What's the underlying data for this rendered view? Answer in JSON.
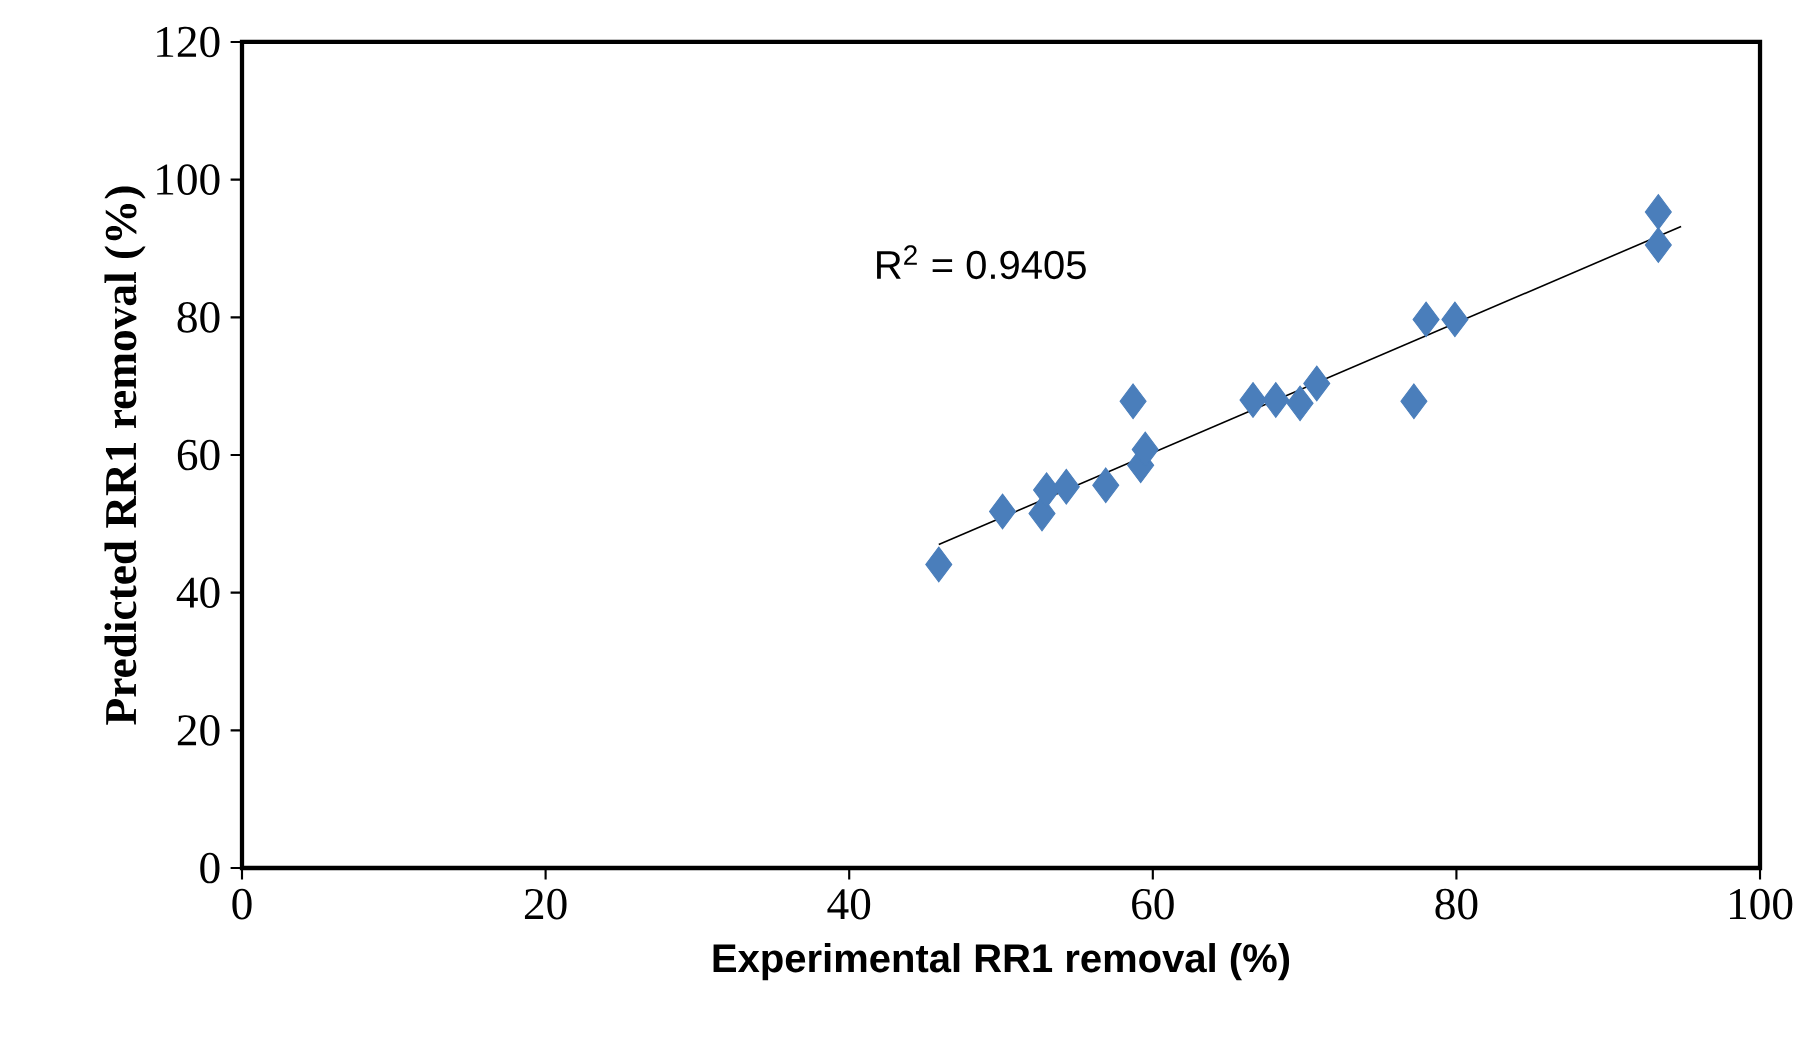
{
  "chart_data": {
    "type": "scatter",
    "xlabel": "Experimental RR1 removal (%)",
    "ylabel": "Predicted RR1 removal (%)",
    "xlim": [
      0,
      100
    ],
    "xticks": [
      0,
      20,
      40,
      60,
      80,
      100
    ],
    "ylim": [
      0,
      120
    ],
    "yticks": [
      0,
      20,
      40,
      60,
      80,
      100,
      120
    ],
    "grid": false,
    "legend": false,
    "marker": "diamond",
    "annotations": [
      "R$^{2}$ = 0.9405"
    ],
    "series": [
      {
        "color": "#4a7ebb",
        "x": [
          45.9,
          50.1,
          52.7,
          53.0,
          54.3,
          56.9,
          58.7,
          59.2,
          59.5,
          66.6,
          68.1,
          69.7,
          70.5,
          70.8,
          77.2,
          78.0,
          79.9,
          93.3,
          93.3
        ],
        "values": [
          44.1,
          51.8,
          51.5,
          54.9,
          55.4,
          55.6,
          67.8,
          58.5,
          60.8,
          68.0,
          68.0,
          67.5,
          null,
          70.4,
          67.8,
          79.7,
          79.7,
          95.3,
          90.5
        ]
      },
      {
        "type": "line",
        "color": "#000000",
        "marker": "none",
        "x": [
          45.9,
          94.8
        ],
        "values": [
          47.0,
          93.2
        ]
      }
    ]
  }
}
